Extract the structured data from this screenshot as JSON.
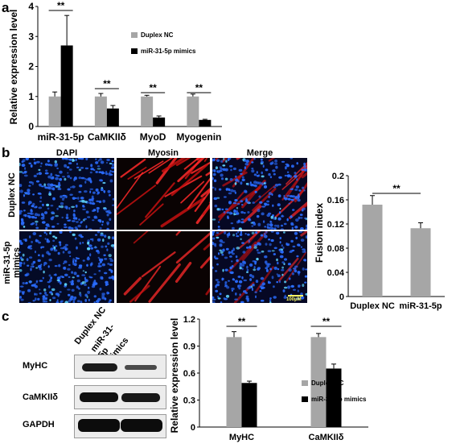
{
  "panels": {
    "a": "a",
    "b": "b",
    "c": "c"
  },
  "colors": {
    "nc": "#a6a6a6",
    "mimics": "#000000",
    "nuclei": "#2a6cff",
    "myosin": "#e01515"
  },
  "microscopy": {
    "columns": [
      "DAPI",
      "Myosin",
      "Merge"
    ],
    "rows": [
      "Duplex NC",
      "miR-31-5p mimics"
    ],
    "scale_bar": "100μM"
  },
  "blot": {
    "columns": [
      "Duplex NC",
      "miR-31-5p mimics"
    ],
    "rows": [
      "MyHC",
      "CaMKIIδ",
      "GAPDH"
    ]
  },
  "chart_data": [
    {
      "id": "a",
      "type": "bar",
      "ylabel": "Relative expression level",
      "ylim": [
        0,
        4
      ],
      "yticks": [
        "0",
        "1",
        "2",
        "3",
        "4"
      ],
      "categories": [
        "miR-31-5p",
        "CaMKIIδ",
        "MyoD",
        "Myogenin"
      ],
      "series": [
        {
          "name": "Duplex NC",
          "values": [
            1.0,
            1.0,
            1.0,
            1.0
          ],
          "errors": [
            0.15,
            0.1,
            0.04,
            0.08
          ]
        },
        {
          "name": "miR-31-5p mimics",
          "values": [
            2.7,
            0.6,
            0.3,
            0.22
          ],
          "errors": [
            1.0,
            0.1,
            0.05,
            0.02
          ]
        }
      ],
      "significance": [
        "**",
        "**",
        "**",
        "**"
      ],
      "legend": "right"
    },
    {
      "id": "b",
      "type": "bar",
      "ylabel": "Fusion index",
      "ylim": [
        0,
        0.2
      ],
      "yticks": [
        "0",
        "0.04",
        "0.08",
        "0.12",
        "0.16",
        "0.2"
      ],
      "categories": [
        "Duplex NC",
        "miR-31-5p mimics"
      ],
      "values": [
        0.152,
        0.113
      ],
      "errors": [
        0.015,
        0.009
      ],
      "significance": "**"
    },
    {
      "id": "c",
      "type": "bar",
      "ylabel": "Relative expression level",
      "ylim": [
        0,
        1.2
      ],
      "yticks": [
        "0",
        "0.3",
        "0.6",
        "0.9",
        "1.2"
      ],
      "categories": [
        "MyHC",
        "CaMKIIδ"
      ],
      "series": [
        {
          "name": "Duplex NC",
          "values": [
            1.0,
            1.0
          ],
          "errors": [
            0.06,
            0.04
          ]
        },
        {
          "name": "miR-31-5p mimics",
          "values": [
            0.49,
            0.65
          ],
          "errors": [
            0.02,
            0.05
          ]
        }
      ],
      "significance": [
        "**",
        "**"
      ],
      "legend": "right"
    }
  ]
}
